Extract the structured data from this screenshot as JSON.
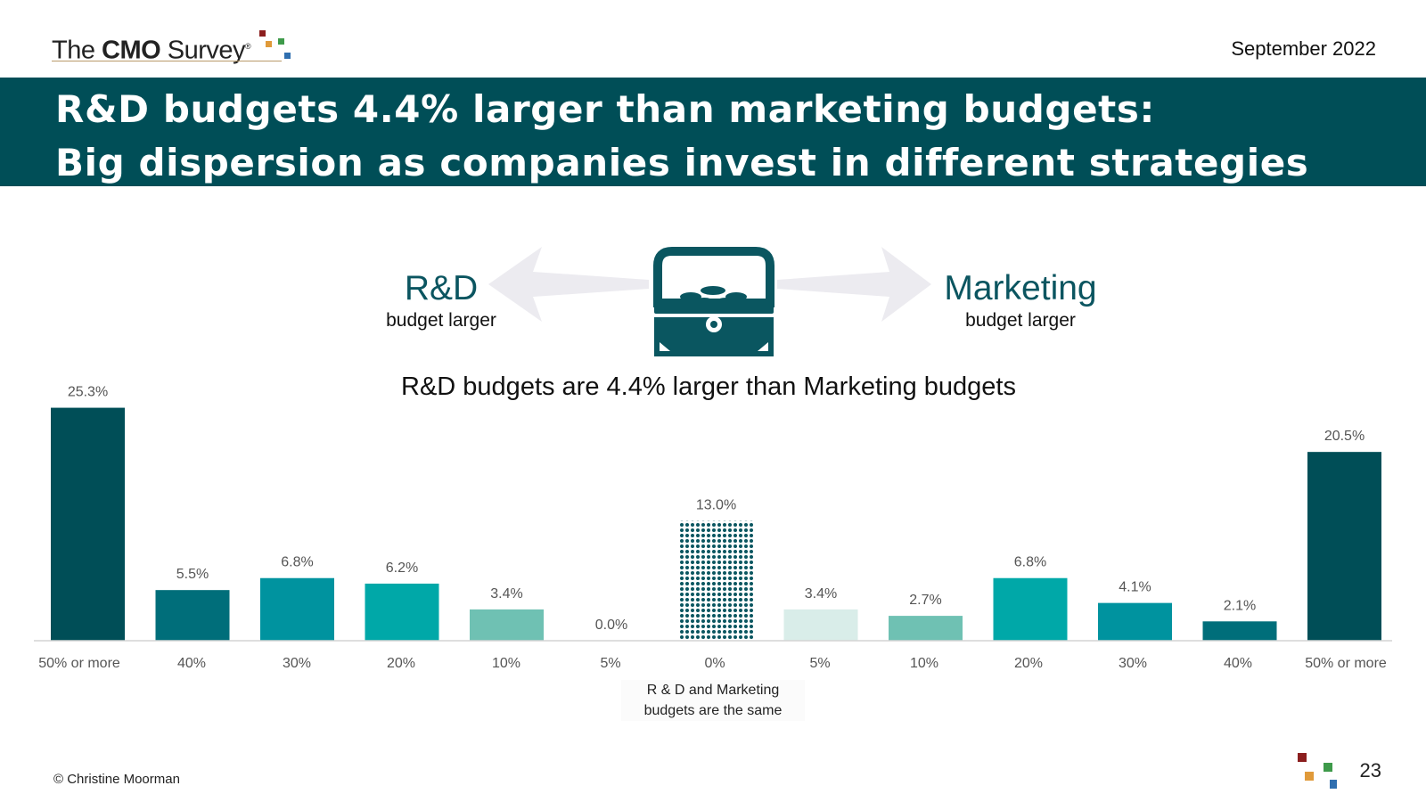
{
  "header": {
    "logo": {
      "prefix": "The ",
      "bold": "CMO",
      "suffix": " Survey",
      "reg": "®"
    },
    "date": "September 2022"
  },
  "title": {
    "line1": "R&D budgets 4.4% larger than marketing budgets:",
    "line2": "Big dispersion as companies invest in different strategies"
  },
  "directions": {
    "left": {
      "big": "R&D",
      "small": "budget larger"
    },
    "right": {
      "big": "Marketing",
      "small": "budget larger"
    },
    "icon": "treasure-chest-icon"
  },
  "subtitle": "R&D budgets are 4.4% larger than Marketing budgets",
  "same_note": "R & D and Marketing budgets are the same",
  "footer": {
    "copyright": "© Christine Moorman",
    "page": "23"
  },
  "colors": {
    "banner": "#004e57",
    "logo_squares": [
      "#8b1e1e",
      "#e09a3a",
      "#3e9a4a",
      "#2f6fb0"
    ]
  },
  "chart_data": {
    "type": "bar",
    "categories": [
      "50% or more",
      "40%",
      "30%",
      "20%",
      "10%",
      "5%",
      "0%",
      "5%",
      "10%",
      "20%",
      "30%",
      "40%",
      "50% or more"
    ],
    "values": [
      25.3,
      5.5,
      6.8,
      6.2,
      3.4,
      0.0,
      13.0,
      3.4,
      2.7,
      6.8,
      4.1,
      2.1,
      20.5
    ],
    "value_labels": [
      "25.3%",
      "5.5%",
      "6.8%",
      "6.2%",
      "3.4%",
      "0.0%",
      "13.0%",
      "3.4%",
      "2.7%",
      "6.8%",
      "4.1%",
      "2.1%",
      "20.5%"
    ],
    "colors": [
      "#004e57",
      "#006e7a",
      "#00939f",
      "#00a8a8",
      "#6fc1b3",
      "#6fc1b3",
      "pattern",
      "#d9ede9",
      "#6fc1b3",
      "#00a8a8",
      "#00939f",
      "#006e7a",
      "#004e57"
    ],
    "ylim": [
      0,
      27
    ],
    "grid": false
  }
}
